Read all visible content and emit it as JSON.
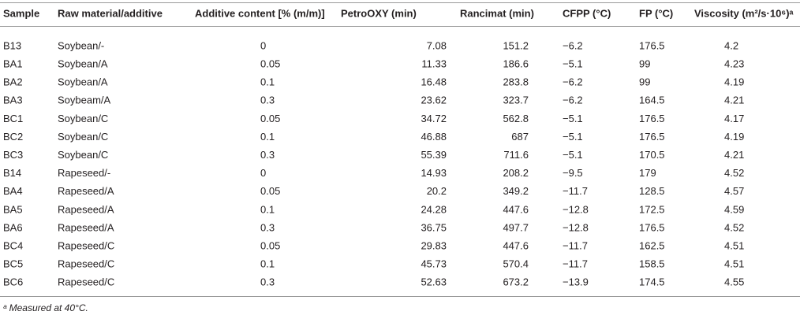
{
  "table": {
    "header": [
      "Sample",
      "Raw material/additive",
      "Additive content [% (m/m)]",
      "PetroOXY (min)",
      "Rancimat (min)",
      "CFPP (°C)",
      "FP (°C)",
      "Viscosity (m²/s·10⁶)ᵃ"
    ],
    "rows": [
      [
        "B13",
        "Soybean/-",
        "0",
        "7.08",
        "151.2",
        "−6.2",
        "176.5",
        "4.2"
      ],
      [
        "BA1",
        "Soybean/A",
        "0.05",
        "11.33",
        "186.6",
        "−5.1",
        "99",
        "4.23"
      ],
      [
        "BA2",
        "Soybean/A",
        "0.1",
        "16.48",
        "283.8",
        "−6.2",
        "99",
        "4.19"
      ],
      [
        "BA3",
        "Soybeam/A",
        "0.3",
        "23.62",
        "323.7",
        "−6.2",
        "164.5",
        "4.21"
      ],
      [
        "BC1",
        "Soybean/C",
        "0.05",
        "34.72",
        "562.8",
        "−5.1",
        "176.5",
        "4.17"
      ],
      [
        "BC2",
        "Soybean/C",
        "0.1",
        "46.88",
        "687",
        "−5.1",
        "176.5",
        "4.19"
      ],
      [
        "BC3",
        "Soybean/C",
        "0.3",
        "55.39",
        "711.6",
        "−5.1",
        "170.5",
        "4.21"
      ],
      [
        "B14",
        "Rapeseed/-",
        "0",
        "14.93",
        "208.2",
        "−9.5",
        "179",
        "4.52"
      ],
      [
        "BA4",
        "Rapeseed/A",
        "0.05",
        "20.2",
        "349.2",
        "−11.7",
        "128.5",
        "4.57"
      ],
      [
        "BA5",
        "Rapeseed/A",
        "0.1",
        "24.28",
        "447.6",
        "−12.8",
        "172.5",
        "4.59"
      ],
      [
        "BA6",
        "Rapeseed/A",
        "0.3",
        "36.75",
        "497.7",
        "−12.8",
        "176.5",
        "4.52"
      ],
      [
        "BC4",
        "Rapeseed/C",
        "0.05",
        "29.83",
        "447.6",
        "−11.7",
        "162.5",
        "4.51"
      ],
      [
        "BC5",
        "Rapeseed/C",
        "0.1",
        "45.73",
        "570.4",
        "−11.7",
        "158.5",
        "4.51"
      ],
      [
        "BC6",
        "Rapeseed/C",
        "0.3",
        "52.63",
        "673.2",
        "−13.9",
        "174.5",
        "4.55"
      ]
    ],
    "footnote": "ᵃ Measured at 40°C."
  }
}
